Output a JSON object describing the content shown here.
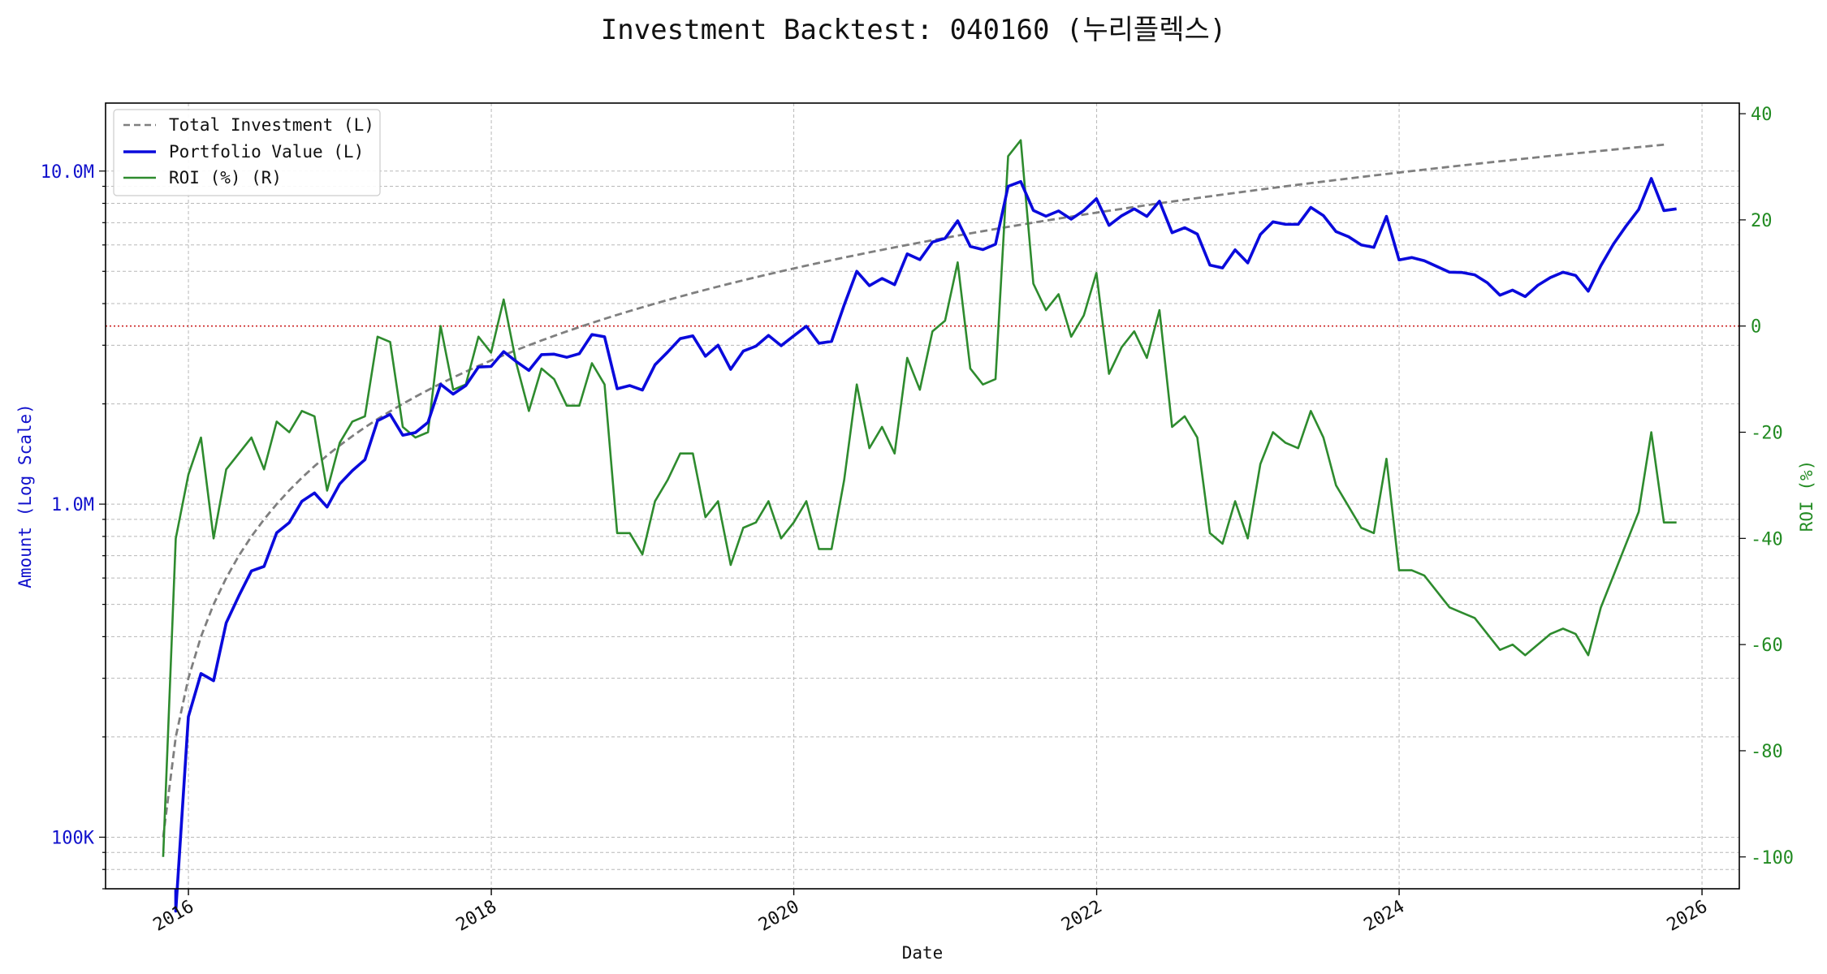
{
  "chart_data": {
    "type": "line",
    "title": "Investment Backtest: 040160 (누리플렉스)",
    "xlabel": "Date",
    "ylabel_left": "Amount (Log Scale)",
    "ylabel_right": "ROI (%)",
    "y_left_scale": "log",
    "y_left_range": [
      70000,
      16000000
    ],
    "y_right_range": [
      -106,
      42
    ],
    "x_range": [
      "2015-06-15",
      "2026-04-01"
    ],
    "x_ticks": [
      "2016",
      "2018",
      "2020",
      "2022",
      "2024",
      "2026"
    ],
    "y_left_ticks": [
      {
        "value": 100000,
        "label": "100K"
      },
      {
        "value": 1000000,
        "label": "1.0M"
      },
      {
        "value": 10000000,
        "label": "10.0M"
      }
    ],
    "y_right_ticks": [
      -100,
      -80,
      -60,
      -40,
      -20,
      0,
      20,
      40
    ],
    "grid": true,
    "zero_reference_line": {
      "axis": "right",
      "value": 0,
      "color": "#cc2222",
      "style": "dotted"
    },
    "legend": {
      "position": "top-left",
      "entries": [
        "Total Investment (L)",
        "Portfolio Value (L)",
        "ROI (%) (R)"
      ]
    },
    "colors": {
      "investment": "#7f7f7f",
      "portfolio": "#0a0adc",
      "roi": "#2e8b2e",
      "zero_line": "#cc2222"
    },
    "start_date": "2015-11-01",
    "monthly_contribution": 100000,
    "series": [
      {
        "name": "Total Investment (L)",
        "axis": "left",
        "style": "dashed",
        "start": {
          "date": "2015-11-01",
          "value": 100000
        },
        "end": {
          "date": "2025-11-01",
          "value": 12000000
        }
      },
      {
        "name": "Portfolio Value (L)",
        "axis": "left",
        "style": "solid",
        "values": [
          null,
          60000,
          230000,
          310000,
          295000,
          440000,
          530000,
          630000,
          650000,
          820000,
          880000,
          1020000,
          1080000,
          980000,
          1150000,
          1260000,
          1360000,
          1780000,
          1860000,
          1610000,
          1640000,
          1760000,
          2290000,
          2140000,
          2270000,
          2580000,
          2590000,
          2870000,
          2680000,
          2520000,
          2810000,
          2820000,
          2760000,
          2830000,
          3230000,
          3180000,
          2220000,
          2270000,
          2200000,
          2620000,
          2860000,
          3140000,
          3200000,
          2780000,
          3000000,
          2540000,
          2880000,
          2980000,
          3210000,
          2990000,
          3200000,
          3420000,
          3040000,
          3080000,
          3960000,
          5000000,
          4530000,
          4760000,
          4560000,
          5640000,
          5420000,
          6120000,
          6280000,
          7090000,
          5940000,
          5810000,
          6030000,
          9000000,
          9300000,
          7620000,
          7320000,
          7590000,
          7170000,
          7610000,
          8260000,
          6870000,
          7340000,
          7700000,
          7310000,
          8120000,
          6530000,
          6760000,
          6470000,
          5220000,
          5120000,
          5800000,
          5300000,
          6450000,
          7040000,
          6920000,
          6920000,
          7780000,
          7350000,
          6580000,
          6350000,
          6000000,
          5900000,
          7310000,
          5410000,
          5500000,
          5380000,
          5170000,
          4970000,
          4960000,
          4880000,
          4620000,
          4240000,
          4390000,
          4200000,
          4540000,
          4790000,
          4970000,
          4860000,
          4360000,
          5200000,
          6040000,
          6840000,
          7670000,
          9500000,
          7610000,
          7700000
        ]
      },
      {
        "name": "ROI (%) (R)",
        "axis": "right",
        "style": "solid",
        "values": [
          -100,
          -40,
          -28,
          -21,
          -40,
          -27,
          -24,
          -21,
          -27,
          -18,
          -20,
          -16,
          -17,
          -31,
          -22,
          -18,
          -17,
          -2,
          -3,
          -19,
          -21,
          -20,
          0,
          -12,
          -11,
          -2,
          -5,
          5,
          -7,
          -16,
          -8,
          -10,
          -15,
          -15,
          -7,
          -11,
          -39,
          -39,
          -43,
          -33,
          -29,
          -24,
          -24,
          -36,
          -33,
          -45,
          -38,
          -37,
          -33,
          -40,
          -37,
          -33,
          -42,
          -42,
          -29,
          -11,
          -23,
          -19,
          -24,
          -6,
          -12,
          -1,
          1,
          12,
          -8,
          -11,
          -10,
          32,
          35,
          8,
          3,
          6,
          -2,
          2,
          10,
          -9,
          -4,
          -1,
          -6,
          3,
          -19,
          -17,
          -21,
          -39,
          -41,
          -33,
          -40,
          -26,
          -20,
          -22,
          -23,
          -16,
          -21,
          -30,
          -34,
          -38,
          -39,
          -25,
          -46,
          -46,
          -47,
          -50,
          -53,
          -54,
          -55,
          -58,
          -61,
          -60,
          -62,
          -60,
          -58,
          -57,
          -58,
          -62,
          -53,
          -47,
          -41,
          -35,
          -20,
          -37,
          -37
        ]
      }
    ]
  }
}
